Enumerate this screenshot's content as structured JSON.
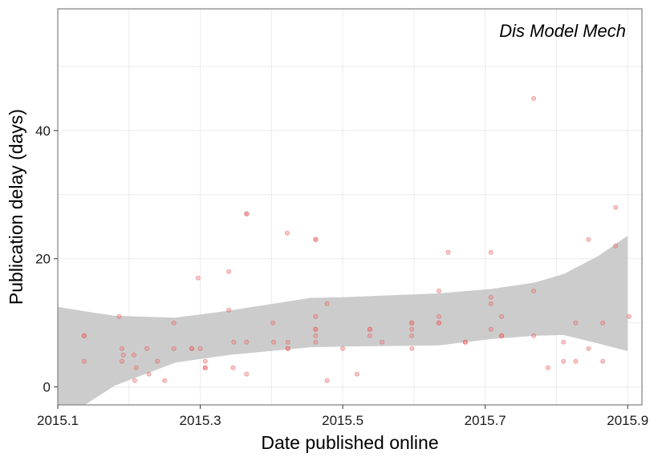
{
  "chart_data": {
    "type": "scatter",
    "title": "",
    "annotation": "Dis Model Mech",
    "xlabel": "Date published online",
    "ylabel": "Publication delay (days)",
    "xlim": [
      2015.1,
      2015.92
    ],
    "ylim": [
      -2.8,
      59
    ],
    "xticks": [
      2015.1,
      2015.3,
      2015.5,
      2015.7,
      2015.9
    ],
    "xtick_labels": [
      "2015.1",
      "2015.3",
      "2015.5",
      "2015.7",
      "2015.9"
    ],
    "yticks": [
      0,
      20,
      40
    ],
    "ytick_labels": [
      "0",
      "20",
      "40"
    ],
    "grid": true,
    "legend": "none",
    "colors": {
      "points": "#f08080",
      "point_stroke": "#d94a4a",
      "band": "#cccccc",
      "grid": "#ebebeb",
      "frame": "#888888"
    },
    "series": [
      {
        "points": [
          [
            2015.137,
            8
          ],
          [
            2015.137,
            8
          ],
          [
            2015.137,
            4
          ],
          [
            2015.186,
            11
          ],
          [
            2015.19,
            6
          ],
          [
            2015.19,
            4
          ],
          [
            2015.192,
            5
          ],
          [
            2015.207,
            5
          ],
          [
            2015.208,
            1
          ],
          [
            2015.21,
            3
          ],
          [
            2015.225,
            6
          ],
          [
            2015.228,
            2
          ],
          [
            2015.24,
            4
          ],
          [
            2015.25,
            1
          ],
          [
            2015.263,
            10
          ],
          [
            2015.263,
            6
          ],
          [
            2015.288,
            6
          ],
          [
            2015.288,
            6
          ],
          [
            2015.297,
            17
          ],
          [
            2015.3,
            6
          ],
          [
            2015.307,
            4
          ],
          [
            2015.307,
            3
          ],
          [
            2015.307,
            3
          ],
          [
            2015.34,
            12
          ],
          [
            2015.34,
            18
          ],
          [
            2015.346,
            3
          ],
          [
            2015.347,
            7
          ],
          [
            2015.365,
            27
          ],
          [
            2015.365,
            27
          ],
          [
            2015.365,
            7
          ],
          [
            2015.365,
            2
          ],
          [
            2015.402,
            10
          ],
          [
            2015.403,
            7
          ],
          [
            2015.422,
            24
          ],
          [
            2015.423,
            7
          ],
          [
            2015.423,
            6
          ],
          [
            2015.423,
            6
          ],
          [
            2015.462,
            23
          ],
          [
            2015.462,
            23
          ],
          [
            2015.462,
            11
          ],
          [
            2015.462,
            9
          ],
          [
            2015.462,
            9
          ],
          [
            2015.462,
            8
          ],
          [
            2015.462,
            7
          ],
          [
            2015.478,
            13
          ],
          [
            2015.478,
            1
          ],
          [
            2015.5,
            6
          ],
          [
            2015.52,
            2
          ],
          [
            2015.538,
            9
          ],
          [
            2015.538,
            9
          ],
          [
            2015.538,
            8
          ],
          [
            2015.555,
            7
          ],
          [
            2015.597,
            10
          ],
          [
            2015.597,
            10
          ],
          [
            2015.597,
            9
          ],
          [
            2015.597,
            8
          ],
          [
            2015.597,
            6
          ],
          [
            2015.635,
            15
          ],
          [
            2015.635,
            11
          ],
          [
            2015.635,
            10
          ],
          [
            2015.635,
            10
          ],
          [
            2015.648,
            21
          ],
          [
            2015.672,
            7
          ],
          [
            2015.672,
            7
          ],
          [
            2015.708,
            21
          ],
          [
            2015.708,
            14
          ],
          [
            2015.708,
            13
          ],
          [
            2015.708,
            9
          ],
          [
            2015.723,
            11
          ],
          [
            2015.723,
            8
          ],
          [
            2015.723,
            8
          ],
          [
            2015.768,
            45
          ],
          [
            2015.768,
            15
          ],
          [
            2015.768,
            8
          ],
          [
            2015.788,
            3
          ],
          [
            2015.81,
            7
          ],
          [
            2015.81,
            4
          ],
          [
            2015.827,
            10
          ],
          [
            2015.827,
            4
          ],
          [
            2015.845,
            23
          ],
          [
            2015.845,
            6
          ],
          [
            2015.865,
            10
          ],
          [
            2015.865,
            4
          ],
          [
            2015.883,
            28
          ],
          [
            2015.883,
            22
          ],
          [
            2015.902,
            11
          ]
        ]
      }
    ],
    "confidence_band": {
      "x": [
        2015.1,
        2015.138,
        2015.18,
        2015.265,
        2015.34,
        2015.455,
        2015.5,
        2015.635,
        2015.71,
        2015.77,
        2015.81,
        2015.858,
        2015.9
      ],
      "lower": [
        -2.8,
        -2.8,
        0.2,
        3.8,
        5.0,
        6.2,
        6.3,
        6.5,
        7.5,
        8.0,
        8.1,
        6.8,
        5.6
      ],
      "upper": [
        12.5,
        11.8,
        11.1,
        10.8,
        11.9,
        13.9,
        14.0,
        14.6,
        15.3,
        16.3,
        17.6,
        20.4,
        23.6
      ]
    }
  }
}
